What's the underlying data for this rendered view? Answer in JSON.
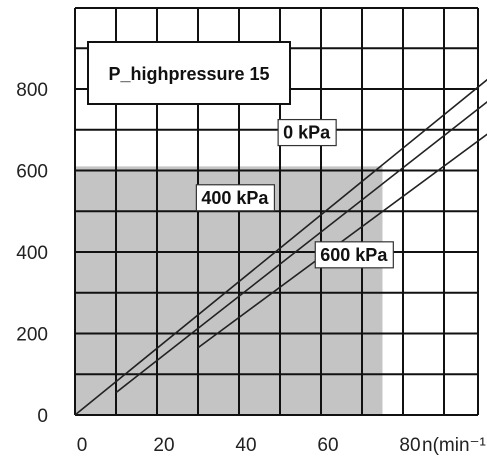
{
  "chart_data": {
    "type": "line",
    "title": "P_highpressure 15",
    "xlabel": "n(min⁻¹",
    "ylabel": "",
    "xlim": [
      0,
      100
    ],
    "ylim": [
      0,
      1000
    ],
    "x_ticks": [
      "0",
      "20",
      "40",
      "60",
      "80"
    ],
    "y_ticks": [
      "0",
      "200",
      "400",
      "600",
      "800"
    ],
    "grid": true,
    "shaded_region": {
      "x": [
        0,
        75
      ],
      "y": [
        0,
        610
      ],
      "color": "#c4c4c4"
    },
    "series": [
      {
        "name": "0 kPa",
        "x": [
          0,
          102
        ],
        "y": [
          0,
          835
        ]
      },
      {
        "name": "400 kPa",
        "x": [
          10,
          102
        ],
        "y": [
          55,
          780
        ]
      },
      {
        "name": "600 kPa",
        "x": [
          30,
          102
        ],
        "y": [
          165,
          700
        ]
      }
    ],
    "annotations": [
      {
        "text": "0 kPa",
        "x": 56.5,
        "y": 690
      },
      {
        "text": "400 kPa",
        "x": 39,
        "y": 530
      },
      {
        "text": "600 kPa",
        "x": 68,
        "y": 390
      }
    ],
    "colors": {
      "grid": "#111111",
      "line": "#222222",
      "shade": "#c4c4c4"
    }
  }
}
